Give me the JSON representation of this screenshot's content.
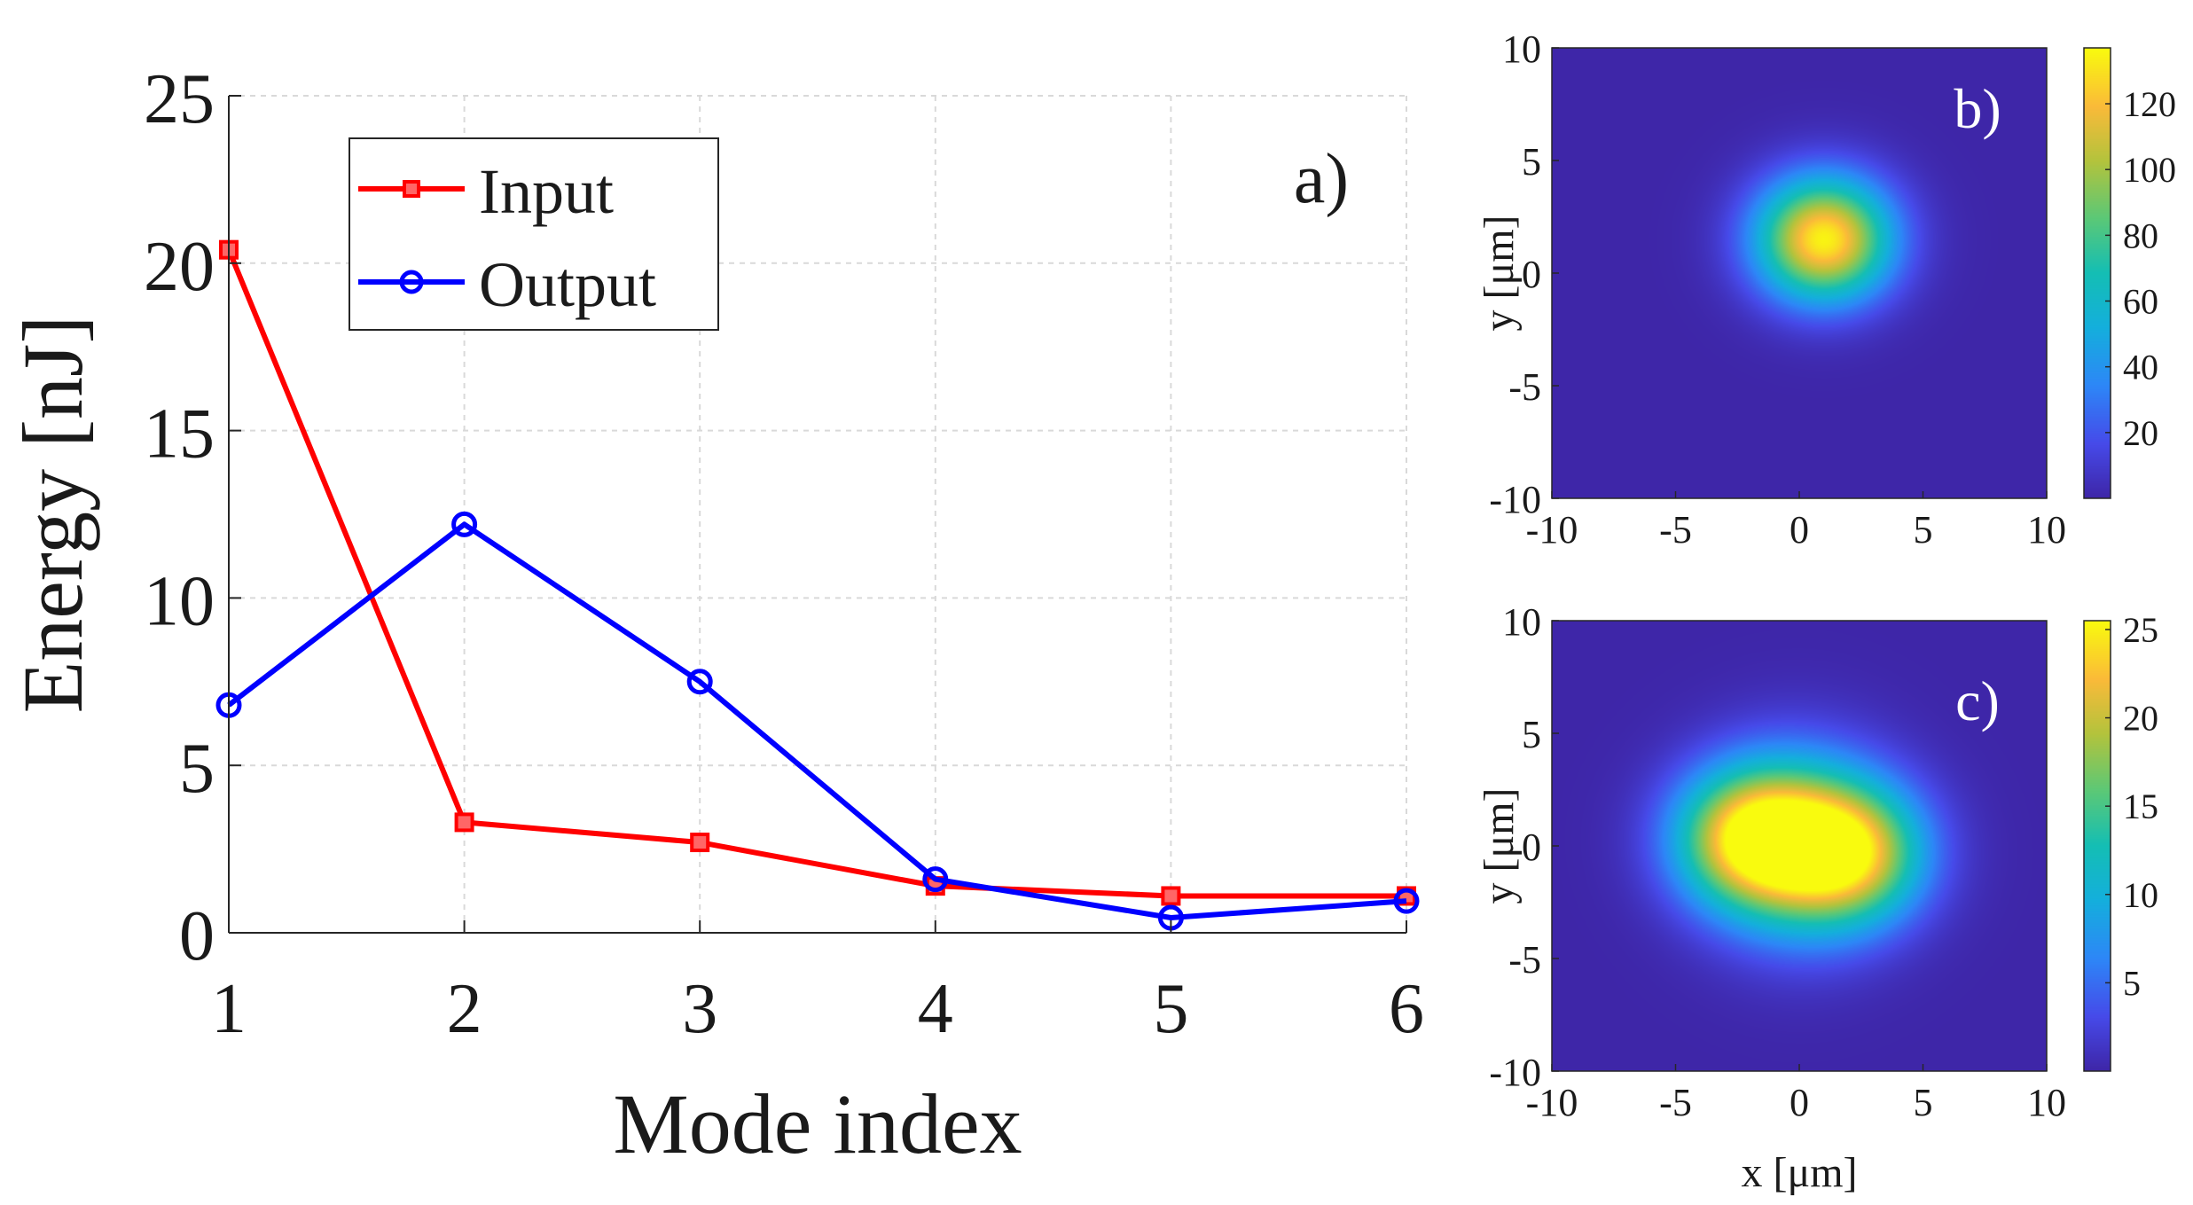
{
  "chart_data": [
    {
      "id": "a",
      "type": "line",
      "panel_label": "a)",
      "xlabel": "Mode index",
      "ylabel": "Energy [nJ]",
      "xlim": [
        1,
        6
      ],
      "ylim": [
        0,
        25
      ],
      "xticks": [
        1,
        2,
        3,
        4,
        5,
        6
      ],
      "yticks": [
        0,
        5,
        10,
        15,
        20,
        25
      ],
      "grid": true,
      "legend_position": "top-left",
      "x": [
        1,
        2,
        3,
        4,
        5,
        6
      ],
      "series": [
        {
          "name": "Input",
          "values": [
            20.4,
            3.3,
            2.7,
            1.4,
            1.1,
            1.1
          ],
          "color": "#ff0000",
          "marker": "square"
        },
        {
          "name": "Output",
          "values": [
            6.8,
            12.2,
            7.5,
            1.6,
            0.45,
            0.95
          ],
          "color": "#0000ff",
          "marker": "circle"
        }
      ]
    },
    {
      "id": "b",
      "type": "heatmap",
      "panel_label": "b)",
      "xlabel": "",
      "ylabel": "y [μm]",
      "xlim": [
        -10,
        10
      ],
      "ylim": [
        -10,
        10
      ],
      "xticks": [
        -10,
        -5,
        0,
        5,
        10
      ],
      "yticks": [
        -10,
        -5,
        0,
        5,
        10
      ],
      "colorbar_ticks": [
        20,
        40,
        60,
        80,
        100,
        120
      ],
      "colorbar_range": [
        0,
        137
      ],
      "colormap": "parula",
      "peaks": [
        {
          "x": 1.0,
          "y": 1.5,
          "amplitude": 135,
          "sigma": 1.9
        }
      ]
    },
    {
      "id": "c",
      "type": "heatmap",
      "panel_label": "c)",
      "xlabel": "x [μm]",
      "ylabel": "y [μm]",
      "xlim": [
        -10,
        10
      ],
      "ylim": [
        -10,
        10
      ],
      "xticks": [
        -10,
        -5,
        0,
        5,
        10
      ],
      "yticks": [
        -10,
        -5,
        0,
        5,
        10
      ],
      "colorbar_ticks": [
        5,
        10,
        15,
        20,
        25
      ],
      "colorbar_range": [
        0,
        25.5
      ],
      "colormap": "parula",
      "peaks": [
        {
          "x": -2.0,
          "y": 0.3,
          "amplitude": 22,
          "sigma": 2.1
        },
        {
          "x": 2.0,
          "y": -0.3,
          "amplitude": 21,
          "sigma": 2.1
        },
        {
          "x": 0.0,
          "y": 1.8,
          "amplitude": 6,
          "sigma": 2.5
        },
        {
          "x": 0.0,
          "y": -1.8,
          "amplitude": 6,
          "sigma": 2.5
        }
      ]
    }
  ]
}
